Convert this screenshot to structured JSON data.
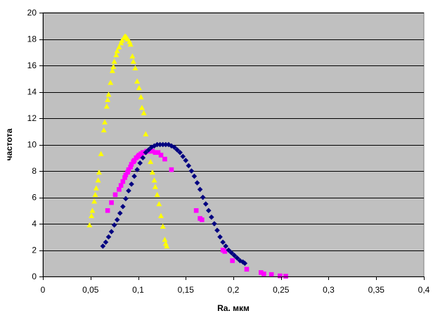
{
  "chart_data": {
    "type": "scatter",
    "title": "",
    "xlabel": "Ra. мкм",
    "ylabel": "частота",
    "xlim": [
      0,
      0.4
    ],
    "ylim": [
      0,
      20
    ],
    "x_ticks": [
      0,
      0.05,
      0.1,
      0.15,
      0.2,
      0.25,
      0.3,
      0.35,
      0.4
    ],
    "x_tick_labels": [
      "0",
      "0,05",
      "0,1",
      "0,15",
      "0,2",
      "0,25",
      "0,3",
      "0,35",
      "0,4"
    ],
    "y_ticks": [
      0,
      2,
      4,
      6,
      8,
      10,
      12,
      14,
      16,
      18,
      20
    ],
    "y_tick_labels": [
      "0",
      "2",
      "4",
      "6",
      "8",
      "10",
      "12",
      "14",
      "16",
      "18",
      "20"
    ],
    "grid": "horizontal",
    "plot_background": "#c0c0c0",
    "legend": "none",
    "series": [
      {
        "color": "#ffff00",
        "marker": "triangle",
        "points": [
          [
            0.049,
            3.9
          ],
          [
            0.051,
            4.6
          ],
          [
            0.052,
            5.0
          ],
          [
            0.054,
            5.7
          ],
          [
            0.055,
            6.2
          ],
          [
            0.056,
            6.7
          ],
          [
            0.058,
            7.3
          ],
          [
            0.059,
            7.9
          ],
          [
            0.061,
            9.3
          ],
          [
            0.064,
            11.1
          ],
          [
            0.065,
            11.7
          ],
          [
            0.067,
            12.9
          ],
          [
            0.068,
            13.4
          ],
          [
            0.069,
            13.8
          ],
          [
            0.071,
            14.7
          ],
          [
            0.073,
            15.6
          ],
          [
            0.074,
            15.9
          ],
          [
            0.075,
            16.3
          ],
          [
            0.077,
            16.8
          ],
          [
            0.078,
            17.1
          ],
          [
            0.08,
            17.4
          ],
          [
            0.082,
            17.7
          ],
          [
            0.083,
            17.9
          ],
          [
            0.085,
            18.1
          ],
          [
            0.086,
            18.2
          ],
          [
            0.087,
            18.2
          ],
          [
            0.088,
            18.1
          ],
          [
            0.089,
            18.0
          ],
          [
            0.091,
            17.8
          ],
          [
            0.092,
            17.6
          ],
          [
            0.094,
            16.7
          ],
          [
            0.095,
            16.3
          ],
          [
            0.097,
            15.8
          ],
          [
            0.099,
            14.8
          ],
          [
            0.101,
            14.3
          ],
          [
            0.103,
            13.6
          ],
          [
            0.104,
            12.8
          ],
          [
            0.106,
            12.4
          ],
          [
            0.108,
            10.8
          ],
          [
            0.111,
            9.5
          ],
          [
            0.113,
            8.7
          ],
          [
            0.115,
            7.9
          ],
          [
            0.117,
            7.3
          ],
          [
            0.118,
            6.8
          ],
          [
            0.12,
            6.2
          ],
          [
            0.122,
            5.5
          ],
          [
            0.124,
            4.6
          ],
          [
            0.126,
            3.8
          ],
          [
            0.128,
            2.8
          ],
          [
            0.129,
            2.5
          ],
          [
            0.13,
            2.3
          ]
        ]
      },
      {
        "color": "#ff00ff",
        "marker": "square",
        "points": [
          [
            0.068,
            5.0
          ],
          [
            0.072,
            5.6
          ],
          [
            0.076,
            6.2
          ],
          [
            0.08,
            6.6
          ],
          [
            0.082,
            6.9
          ],
          [
            0.084,
            7.2
          ],
          [
            0.086,
            7.5
          ],
          [
            0.087,
            7.7
          ],
          [
            0.089,
            7.9
          ],
          [
            0.09,
            8.1
          ],
          [
            0.092,
            8.3
          ],
          [
            0.093,
            8.5
          ],
          [
            0.095,
            8.7
          ],
          [
            0.096,
            8.8
          ],
          [
            0.098,
            9.0
          ],
          [
            0.1,
            9.1
          ],
          [
            0.101,
            9.2
          ],
          [
            0.103,
            9.3
          ],
          [
            0.105,
            9.4
          ],
          [
            0.107,
            9.4
          ],
          [
            0.109,
            9.5
          ],
          [
            0.111,
            9.5
          ],
          [
            0.113,
            9.5
          ],
          [
            0.115,
            9.5
          ],
          [
            0.118,
            9.4
          ],
          [
            0.121,
            9.4
          ],
          [
            0.124,
            9.2
          ],
          [
            0.128,
            8.9
          ],
          [
            0.135,
            8.1
          ],
          [
            0.161,
            5.0
          ],
          [
            0.165,
            4.4
          ],
          [
            0.167,
            4.3
          ],
          [
            0.189,
            2.0
          ],
          [
            0.191,
            1.9
          ],
          [
            0.199,
            1.2
          ],
          [
            0.214,
            0.55
          ],
          [
            0.229,
            0.3
          ],
          [
            0.232,
            0.2
          ],
          [
            0.24,
            0.15
          ],
          [
            0.249,
            0.05
          ],
          [
            0.255,
            0.02
          ]
        ]
      },
      {
        "color": "#000080",
        "marker": "diamond",
        "points": [
          [
            0.063,
            2.3
          ],
          [
            0.066,
            2.6
          ],
          [
            0.069,
            3.0
          ],
          [
            0.072,
            3.4
          ],
          [
            0.075,
            3.9
          ],
          [
            0.078,
            4.3
          ],
          [
            0.081,
            4.8
          ],
          [
            0.084,
            5.3
          ],
          [
            0.087,
            5.9
          ],
          [
            0.09,
            6.5
          ],
          [
            0.093,
            7.0
          ],
          [
            0.096,
            7.6
          ],
          [
            0.099,
            8.1
          ],
          [
            0.102,
            8.6
          ],
          [
            0.105,
            9.0
          ],
          [
            0.108,
            9.4
          ],
          [
            0.111,
            9.6
          ],
          [
            0.114,
            9.8
          ],
          [
            0.117,
            9.9
          ],
          [
            0.12,
            10.0
          ],
          [
            0.123,
            10.0
          ],
          [
            0.126,
            10.0
          ],
          [
            0.129,
            10.0
          ],
          [
            0.132,
            10.0
          ],
          [
            0.135,
            9.9
          ],
          [
            0.138,
            9.8
          ],
          [
            0.141,
            9.6
          ],
          [
            0.144,
            9.4
          ],
          [
            0.147,
            9.1
          ],
          [
            0.15,
            8.8
          ],
          [
            0.153,
            8.4
          ],
          [
            0.156,
            8.0
          ],
          [
            0.159,
            7.6
          ],
          [
            0.162,
            7.1
          ],
          [
            0.165,
            6.6
          ],
          [
            0.168,
            6.0
          ],
          [
            0.171,
            5.5
          ],
          [
            0.174,
            5.0
          ],
          [
            0.177,
            4.5
          ],
          [
            0.18,
            4.0
          ],
          [
            0.183,
            3.5
          ],
          [
            0.186,
            3.0
          ],
          [
            0.189,
            2.6
          ],
          [
            0.192,
            2.3
          ],
          [
            0.195,
            2.0
          ],
          [
            0.198,
            1.8
          ],
          [
            0.201,
            1.6
          ],
          [
            0.204,
            1.4
          ],
          [
            0.207,
            1.2
          ],
          [
            0.21,
            1.1
          ],
          [
            0.212,
            1.0
          ]
        ]
      }
    ]
  }
}
